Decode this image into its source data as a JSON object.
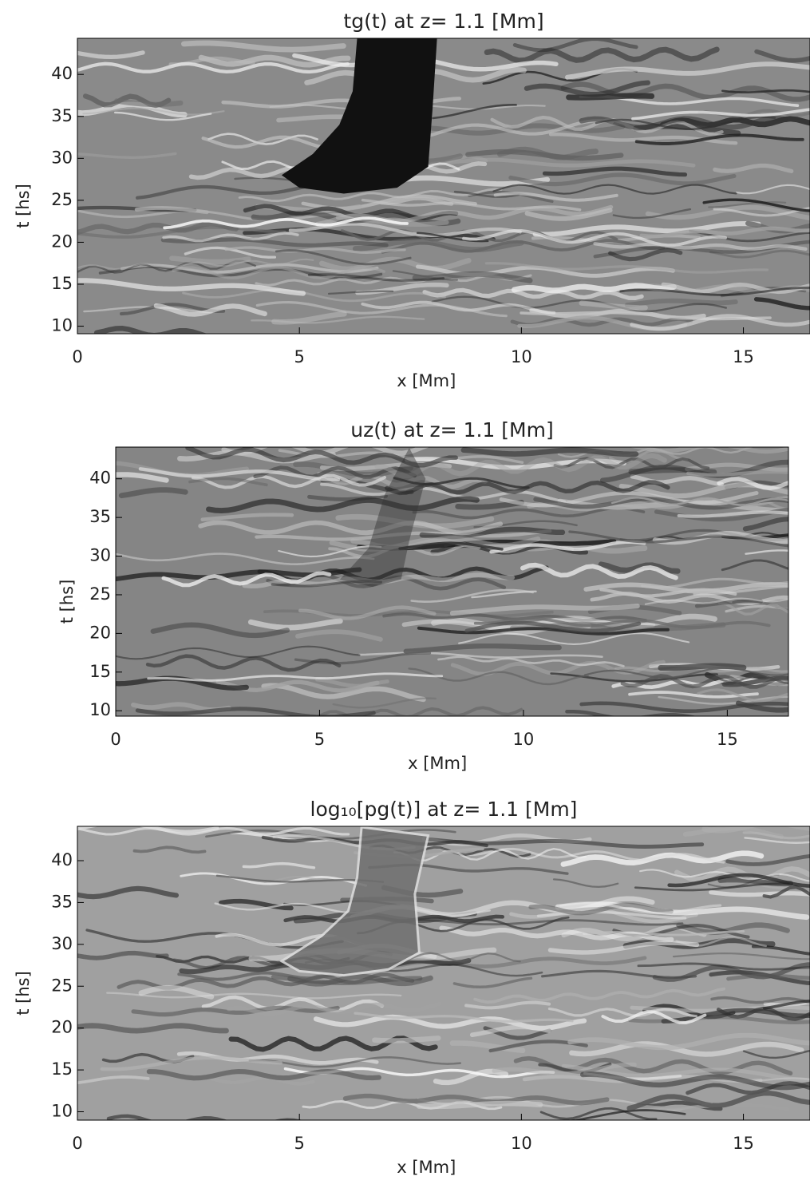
{
  "chart_data": [
    {
      "type": "heatmap",
      "title": "tg(t) at z=  1.1 [Mm]",
      "xlabel": "x [Mm]",
      "ylabel": "t [hs]",
      "xlim": [
        0,
        16.5
      ],
      "ylim": [
        9.1,
        44.3
      ],
      "xticks": [
        0,
        5,
        10,
        15
      ],
      "yticks": [
        10,
        15,
        20,
        25,
        30,
        35,
        40
      ]
    },
    {
      "type": "heatmap",
      "title": "uz(t) at z=  1.1 [Mm]",
      "xlabel": "x [Mm]",
      "ylabel": "t [hs]",
      "xlim": [
        0,
        16.5
      ],
      "ylim": [
        9.3,
        44.1
      ],
      "xticks": [
        0,
        5,
        10,
        15
      ],
      "yticks": [
        10,
        15,
        20,
        25,
        30,
        35,
        40
      ]
    },
    {
      "type": "heatmap",
      "title": "log₁₀[pg(t)] at z=  1.1 [Mm]",
      "xlabel": "x [Mm]",
      "ylabel": "t [hs]",
      "xlim": [
        0,
        16.5
      ],
      "ylim": [
        9.0,
        44.1
      ],
      "xticks": [
        0,
        5,
        10,
        15
      ],
      "yticks": [
        10,
        15,
        20,
        25,
        30,
        35,
        40
      ]
    }
  ]
}
